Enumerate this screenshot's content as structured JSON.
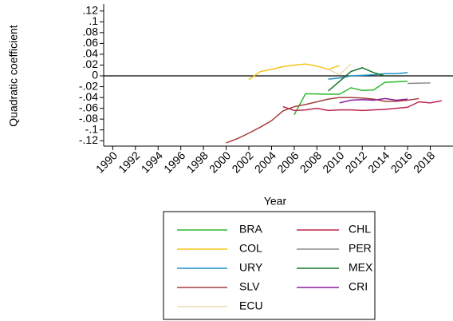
{
  "chart_data": {
    "type": "line",
    "x_label": "Year",
    "y_label": "Quadratic coefficient",
    "xlim": [
      1989.2,
      2020
    ],
    "ylim": [
      -0.13,
      0.133
    ],
    "xticks": [
      1990,
      1992,
      1994,
      1996,
      1998,
      2000,
      2002,
      2004,
      2006,
      2008,
      2010,
      2012,
      2014,
      2016,
      2018
    ],
    "yticks": [
      {
        "value": 0.12,
        "label": ".12"
      },
      {
        "value": 0.1,
        "label": ".1"
      },
      {
        "value": 0.08,
        "label": ".08"
      },
      {
        "value": 0.06,
        "label": ".06"
      },
      {
        "value": 0.04,
        "label": ".04"
      },
      {
        "value": 0.02,
        "label": ".02"
      },
      0,
      {
        "value": -0.02,
        "label": "-.02"
      },
      {
        "value": -0.04,
        "label": "-.04"
      },
      {
        "value": -0.06,
        "label": "-.06"
      },
      {
        "value": -0.08,
        "label": "-.08"
      },
      {
        "value": -0.1,
        "label": "-.1"
      },
      {
        "value": -0.12,
        "label": "-.12"
      }
    ],
    "zero_line": true,
    "series": [
      {
        "name": "BRA",
        "color": "#2db92d",
        "x": [
          2006,
          2007,
          2009,
          2010,
          2011,
          2012,
          2013,
          2014,
          2016
        ],
        "values": [
          -0.072,
          -0.033,
          -0.034,
          -0.034,
          -0.022,
          -0.027,
          -0.026,
          -0.012,
          -0.01
        ]
      },
      {
        "name": "CHL",
        "color": "#c0254f",
        "x": [
          2005,
          2006,
          2007,
          2008,
          2009,
          2010,
          2011,
          2012,
          2013,
          2014,
          2015,
          2016,
          2017,
          2018,
          2019
        ],
        "values": [
          -0.057,
          -0.064,
          -0.063,
          -0.06,
          -0.064,
          -0.063,
          -0.063,
          -0.064,
          -0.063,
          -0.062,
          -0.06,
          -0.058,
          -0.048,
          -0.05,
          -0.046
        ]
      },
      {
        "name": "COL",
        "color": "#f5c518",
        "x": [
          2002,
          2003,
          2004,
          2005,
          2006,
          2007,
          2008,
          2009,
          2010
        ],
        "values": [
          -0.007,
          0.008,
          0.012,
          0.017,
          0.02,
          0.022,
          0.018,
          0.012,
          0.019
        ]
      },
      {
        "name": "PER",
        "color": "#8c8c8c",
        "x": [
          2016,
          2018
        ],
        "values": [
          -0.014,
          -0.013
        ]
      },
      {
        "name": "URY",
        "color": "#1e8fc8",
        "x": [
          2009,
          2010,
          2011,
          2012,
          2013,
          2014,
          2015,
          2016
        ],
        "values": [
          -0.006,
          -0.004,
          0,
          0.001,
          0.002,
          0.004,
          0.004,
          0.006
        ]
      },
      {
        "name": "MEX",
        "color": "#17752a",
        "x": [
          2009,
          2010,
          2011,
          2012,
          2013,
          2014
        ],
        "values": [
          -0.028,
          -0.01,
          0.008,
          0.015,
          0.006,
          0
        ]
      },
      {
        "name": "SLV",
        "color": "#a33d3d",
        "x": [
          2000,
          2001,
          2002,
          2003,
          2004,
          2005,
          2006,
          2007,
          2008,
          2009,
          2010,
          2011,
          2012,
          2013,
          2014,
          2015,
          2016,
          2017
        ],
        "values": [
          -0.124,
          -0.116,
          -0.106,
          -0.095,
          -0.083,
          -0.065,
          -0.057,
          -0.053,
          -0.048,
          -0.043,
          -0.04,
          -0.04,
          -0.041,
          -0.043,
          -0.047,
          -0.047,
          -0.045,
          -0.042
        ]
      },
      {
        "name": "CRI",
        "color": "#8a1d9e",
        "x": [
          2010,
          2011,
          2012,
          2013,
          2014,
          2015,
          2016
        ],
        "values": [
          -0.05,
          -0.045,
          -0.044,
          -0.045,
          -0.042,
          -0.045,
          -0.043
        ]
      },
      {
        "name": "ECU",
        "color": "#e8dcae",
        "x": [
          2009,
          2010,
          2011
        ],
        "values": [
          0.012,
          0.002,
          0.022
        ]
      }
    ]
  }
}
